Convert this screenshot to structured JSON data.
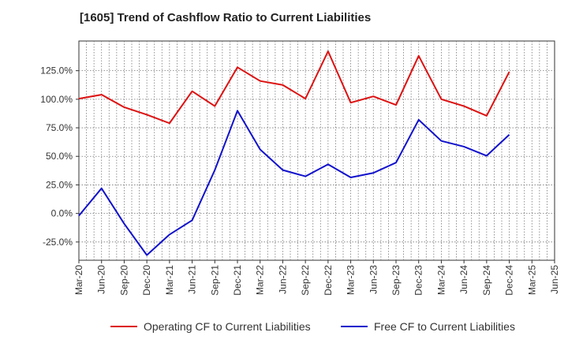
{
  "chart_data": {
    "type": "line",
    "title": "[1605]  Trend of Cashflow Ratio to Current Liabilities",
    "xlabel": "",
    "ylabel": "",
    "x_tick_labels": [
      "Mar-20",
      "Jun-20",
      "Sep-20",
      "Dec-20",
      "Mar-21",
      "Jun-21",
      "Sep-21",
      "Dec-21",
      "Mar-22",
      "Jun-22",
      "Sep-22",
      "Dec-22",
      "Mar-23",
      "Jun-23",
      "Sep-23",
      "Dec-23",
      "Mar-24",
      "Jun-24",
      "Sep-24",
      "Dec-24",
      "Mar-25",
      "Jun-25"
    ],
    "y_tick_labels": [
      "125.0%",
      "100.0%",
      "75.0%",
      "50.0%",
      "25.0%",
      "0.0%",
      "-25.0%"
    ],
    "y_tick_values": [
      125,
      100,
      75,
      50,
      25,
      0,
      -25
    ],
    "ylim": [
      -41,
      151
    ],
    "grid": true,
    "legend_position": "bottom",
    "series": [
      {
        "name": "Operating CF to Current Liabilities",
        "color": "#dd1111",
        "values": [
          100.5,
          104.0,
          93.0,
          86.5,
          79.0,
          107.0,
          94.0,
          128.0,
          116.0,
          112.5,
          100.5,
          142.0,
          97.0,
          102.5,
          95.0,
          138.0,
          100.0,
          94.0,
          85.5,
          124.0
        ]
      },
      {
        "name": "Free CF to Current Liabilities",
        "color": "#1111cc",
        "values": [
          -2.0,
          22.0,
          -9.0,
          -36.5,
          -18.5,
          -6.0,
          38.0,
          90.0,
          56.0,
          38.0,
          32.5,
          43.0,
          31.5,
          35.5,
          44.5,
          82.0,
          63.5,
          58.5,
          50.5,
          69.0
        ]
      }
    ]
  }
}
